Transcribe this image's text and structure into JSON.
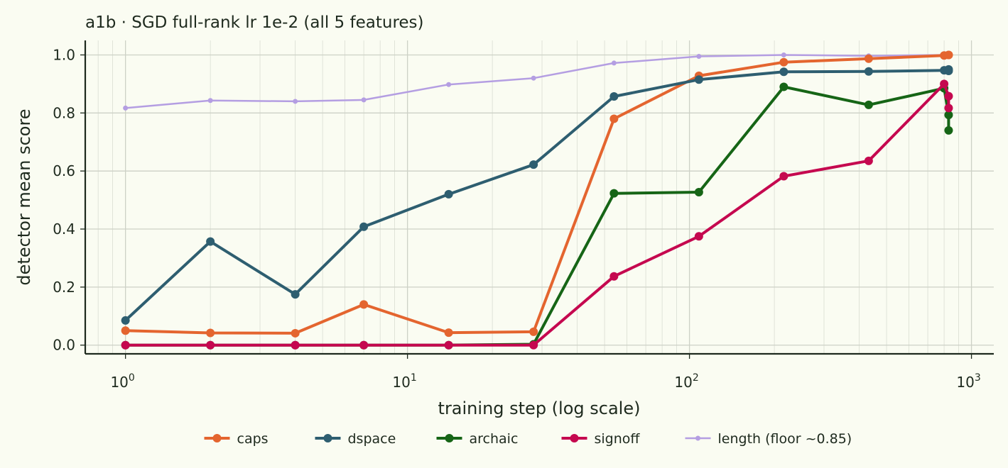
{
  "chart_data": {
    "type": "line",
    "title": "a1b · SGD full-rank lr 1e-2 (all 5 features)",
    "xlabel": "training step (log scale)",
    "ylabel": "detector mean score",
    "xscale": "log",
    "xlim": [
      0.72,
      1200
    ],
    "ylim": [
      -0.03,
      1.05
    ],
    "x_ticks": [
      {
        "value": 1,
        "base": "10",
        "exp": "0"
      },
      {
        "value": 10,
        "base": "10",
        "exp": "1"
      },
      {
        "value": 100,
        "base": "10",
        "exp": "2"
      },
      {
        "value": 1000,
        "base": "10",
        "exp": "3"
      }
    ],
    "y_ticks": [
      {
        "value": 0.0,
        "label": "0.0"
      },
      {
        "value": 0.2,
        "label": "0.2"
      },
      {
        "value": 0.4,
        "label": "0.4"
      },
      {
        "value": 0.6,
        "label": "0.6"
      },
      {
        "value": 0.8,
        "label": "0.8"
      },
      {
        "value": 1.0,
        "label": "1.0"
      }
    ],
    "grid": true,
    "legend_position": "bottom",
    "x": [
      1,
      2,
      4,
      7,
      14,
      28,
      54,
      108,
      216,
      432,
      800,
      830,
      830
    ],
    "series": [
      {
        "name": "caps",
        "color": "#e4652f",
        "width": 4,
        "marker": 6,
        "values": [
          0.05,
          0.042,
          0.041,
          0.14,
          0.043,
          0.046,
          0.78,
          0.928,
          0.975,
          0.987,
          0.998,
          1.0,
          1.0
        ]
      },
      {
        "name": "dspace",
        "color": "#2e5e70",
        "width": 4,
        "marker": 6,
        "values": [
          0.085,
          0.357,
          0.175,
          0.408,
          0.52,
          0.622,
          0.857,
          0.915,
          0.942,
          0.943,
          0.947,
          0.95,
          0.945
        ]
      },
      {
        "name": "archaic",
        "color": "#166516",
        "width": 4,
        "marker": 6,
        "values": [
          0.0,
          0.0,
          0.0,
          0.0,
          0.0,
          0.003,
          0.523,
          0.527,
          0.89,
          0.828,
          0.885,
          0.793,
          0.74
        ]
      },
      {
        "name": "signoff",
        "color": "#c5084f",
        "width": 4,
        "marker": 6,
        "values": [
          0.0,
          0.0,
          0.0,
          0.0,
          0.0,
          0.0,
          0.237,
          0.375,
          0.582,
          0.635,
          0.9,
          0.858,
          0.817
        ]
      },
      {
        "name": "length (floor ~0.85)",
        "color": "#b49ee2",
        "width": 2.5,
        "marker": 3.5,
        "values": [
          0.817,
          0.843,
          0.84,
          0.845,
          0.898,
          0.92,
          0.972,
          0.995,
          1.0,
          0.997,
          1.0,
          0.998,
          0.997
        ]
      }
    ]
  }
}
